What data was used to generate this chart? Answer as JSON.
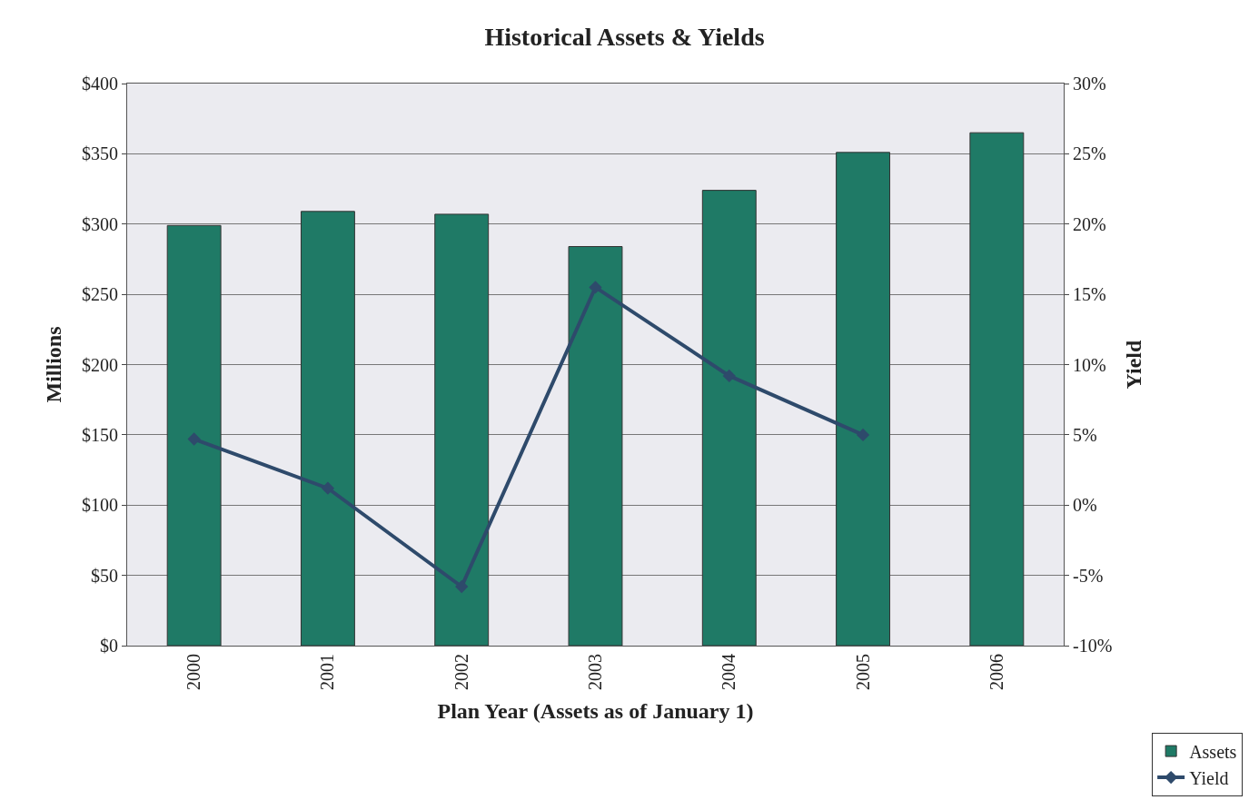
{
  "chart_data": {
    "type": "bar",
    "title": "Historical Assets & Yields",
    "xlabel": "Plan Year (Assets as of January 1)",
    "ylabel": "Millions",
    "y2label": "Yield",
    "categories": [
      "2000",
      "2001",
      "2002",
      "2003",
      "2004",
      "2005",
      "2006"
    ],
    "series": [
      {
        "name": "Assets",
        "color": "#1f7a66",
        "values": [
          299,
          309,
          307,
          284,
          324,
          351,
          365
        ]
      },
      {
        "name": "Yield",
        "type": "line",
        "axis": "y2",
        "color": "#2e4a6b",
        "marker": "diamond",
        "values": [
          4.7,
          1.2,
          -5.8,
          15.5,
          9.2,
          5.0,
          null
        ]
      }
    ],
    "ylim": [
      0,
      400
    ],
    "yticks": [
      {
        "value": 0,
        "label": "$0"
      },
      {
        "value": 50,
        "label": "$50"
      },
      {
        "value": 100,
        "label": "$100"
      },
      {
        "value": 150,
        "label": "$150"
      },
      {
        "value": 200,
        "label": "$200"
      },
      {
        "value": 250,
        "label": "$250"
      },
      {
        "value": 300,
        "label": "$300"
      },
      {
        "value": 350,
        "label": "$350"
      },
      {
        "value": 400,
        "label": "$400"
      }
    ],
    "y2lim": [
      -10,
      30
    ],
    "y2ticks": [
      {
        "value": -10,
        "label": "-10%"
      },
      {
        "value": -5,
        "label": "-5%"
      },
      {
        "value": 0,
        "label": "0%"
      },
      {
        "value": 5,
        "label": "5%"
      },
      {
        "value": 10,
        "label": "10%"
      },
      {
        "value": 15,
        "label": "15%"
      },
      {
        "value": 20,
        "label": "20%"
      },
      {
        "value": 25,
        "label": "25%"
      },
      {
        "value": 30,
        "label": "30%"
      }
    ],
    "grid": "y",
    "legend": "bottom right"
  }
}
